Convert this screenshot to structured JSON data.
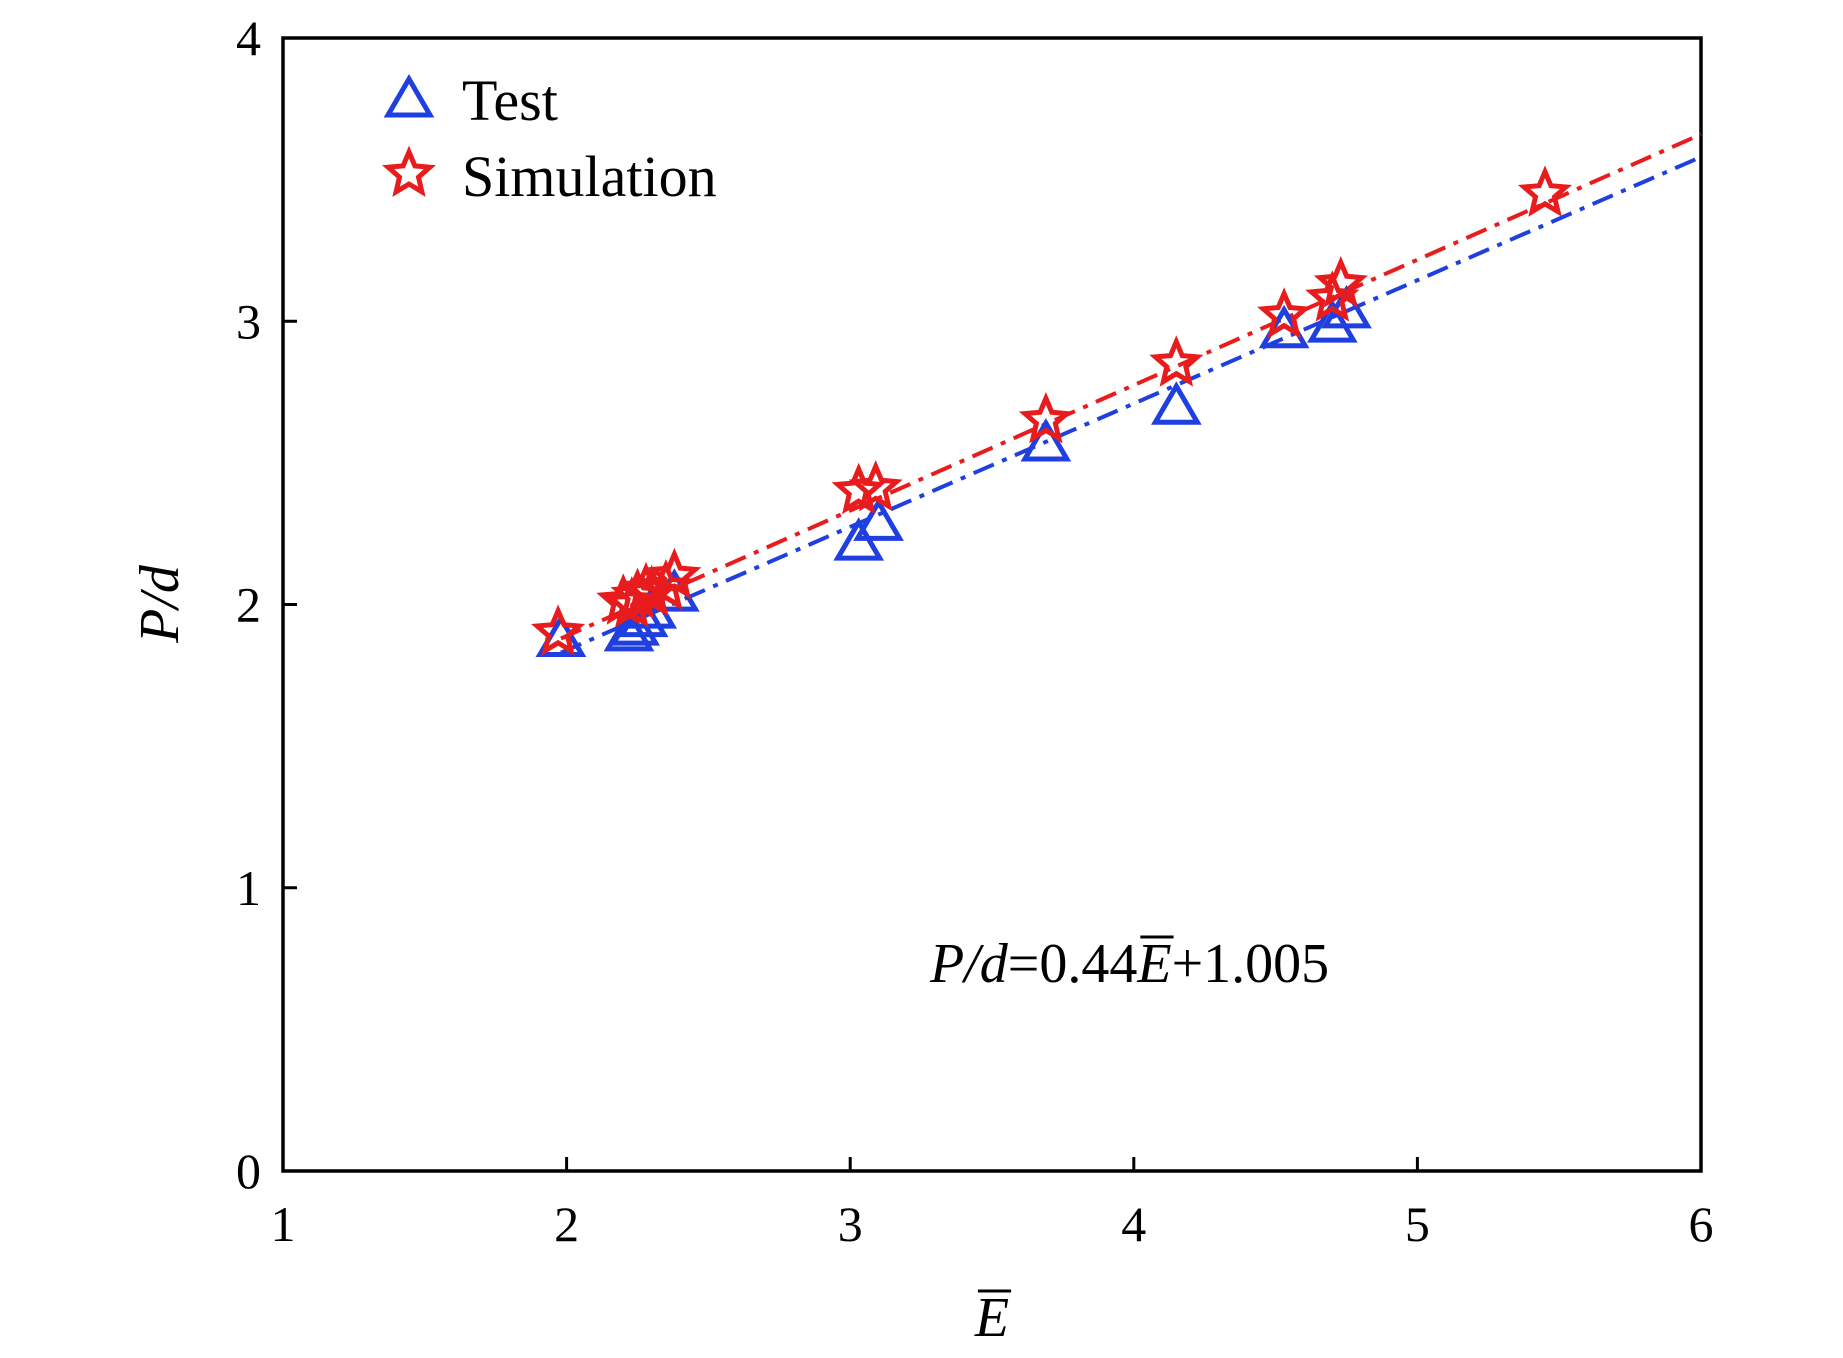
{
  "chart_data": {
    "type": "scatter",
    "xlabel": "E",
    "xlabel_overbar": true,
    "ylabel": "P/d",
    "xlim": [
      1,
      6
    ],
    "ylim": [
      0,
      4
    ],
    "xticks": [
      "1",
      "2",
      "3",
      "4",
      "5",
      "6"
    ],
    "yticks": [
      "0",
      "1",
      "2",
      "3",
      "4"
    ],
    "grid": false,
    "legend_position": "top-left",
    "annotation": {
      "lhs": "P/d",
      "eq": "=0.44",
      "var": "E",
      "rhs": "+1.005"
    },
    "series": [
      {
        "name": "Test",
        "marker": "triangle",
        "color": "#1f3fe0",
        "x": [
          1.98,
          2.22,
          2.24,
          2.27,
          2.3,
          2.38,
          3.03,
          3.1,
          3.69,
          4.15,
          4.53,
          4.7,
          4.75
        ],
        "y": [
          1.88,
          1.9,
          1.92,
          1.95,
          1.98,
          2.04,
          2.22,
          2.29,
          2.57,
          2.7,
          2.97,
          2.99,
          3.04
        ],
        "fit": {
          "x_range": [
            1.98,
            6.0
          ],
          "y_range": [
            1.83,
            3.58
          ],
          "style": "dash-dot"
        }
      },
      {
        "name": "Simulation",
        "marker": "star",
        "color": "#e81c1c",
        "x": [
          1.97,
          2.2,
          2.23,
          2.25,
          2.28,
          2.3,
          2.35,
          2.38,
          3.03,
          3.09,
          3.69,
          4.15,
          4.53,
          4.7,
          4.73,
          5.45
        ],
        "y": [
          1.9,
          2.01,
          2.0,
          2.03,
          2.05,
          2.04,
          2.06,
          2.1,
          2.4,
          2.41,
          2.65,
          2.85,
          3.02,
          3.08,
          3.13,
          3.45
        ],
        "fit": {
          "x_range": [
            1.98,
            6.0
          ],
          "y_range": [
            1.88,
            3.66
          ],
          "style": "dash-dot"
        }
      }
    ]
  }
}
